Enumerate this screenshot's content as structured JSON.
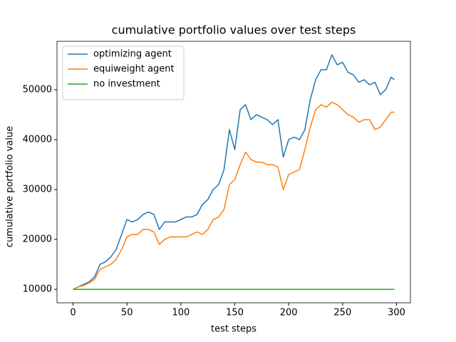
{
  "chart_data": {
    "type": "line",
    "title": "cumulative portfolio values over test steps",
    "xlabel": "test steps",
    "ylabel": "cumulative portfolio value",
    "x": [
      0,
      5,
      10,
      15,
      20,
      25,
      30,
      35,
      40,
      45,
      50,
      55,
      60,
      65,
      70,
      75,
      80,
      85,
      90,
      95,
      100,
      105,
      110,
      115,
      120,
      125,
      130,
      135,
      140,
      145,
      150,
      155,
      160,
      165,
      170,
      175,
      180,
      185,
      190,
      195,
      200,
      205,
      210,
      215,
      220,
      225,
      230,
      235,
      240,
      245,
      250,
      255,
      260,
      265,
      270,
      275,
      280,
      285,
      290,
      295,
      298
    ],
    "series": [
      {
        "name": "optimizing agent",
        "color": "#1f77b4",
        "values": [
          10000,
          10500,
          11000,
          11500,
          12500,
          15000,
          15500,
          16500,
          18000,
          21000,
          24000,
          23500,
          24000,
          25000,
          25500,
          25000,
          22000,
          23500,
          23500,
          23500,
          24000,
          24500,
          24500,
          25000,
          27000,
          28000,
          30000,
          31000,
          34000,
          42000,
          38000,
          46000,
          47000,
          44000,
          45000,
          44500,
          44000,
          43000,
          44000,
          36500,
          40000,
          40500,
          40000,
          42000,
          48000,
          52000,
          54000,
          54000,
          57000,
          55000,
          55500,
          53500,
          53000,
          51500,
          52000,
          51000,
          51500,
          49000,
          50000,
          52500,
          52000
        ]
      },
      {
        "name": "equiweight agent",
        "color": "#ff7f0e",
        "values": [
          10000,
          10500,
          10800,
          11300,
          12000,
          14000,
          14500,
          15000,
          16000,
          18000,
          20500,
          21000,
          21000,
          22000,
          22000,
          21500,
          19000,
          20000,
          20500,
          20500,
          20500,
          20500,
          21000,
          21500,
          21000,
          22000,
          24000,
          24500,
          26000,
          31000,
          32000,
          35000,
          37500,
          36000,
          35500,
          35500,
          35000,
          35000,
          34500,
          30000,
          33000,
          33500,
          34000,
          38000,
          42500,
          46000,
          47000,
          46500,
          47500,
          47000,
          46000,
          45000,
          44500,
          43500,
          44000,
          44000,
          42000,
          42500,
          44000,
          45500,
          45500
        ]
      },
      {
        "name": "no investment",
        "color": "#2ca02c",
        "values": [
          10000,
          10000,
          10000,
          10000,
          10000,
          10000,
          10000,
          10000,
          10000,
          10000,
          10000,
          10000,
          10000,
          10000,
          10000,
          10000,
          10000,
          10000,
          10000,
          10000,
          10000,
          10000,
          10000,
          10000,
          10000,
          10000,
          10000,
          10000,
          10000,
          10000,
          10000,
          10000,
          10000,
          10000,
          10000,
          10000,
          10000,
          10000,
          10000,
          10000,
          10000,
          10000,
          10000,
          10000,
          10000,
          10000,
          10000,
          10000,
          10000,
          10000,
          10000,
          10000,
          10000,
          10000,
          10000,
          10000,
          10000,
          10000,
          10000,
          10000,
          10000
        ]
      }
    ],
    "xlim": [
      -14.9,
      312.9
    ],
    "ylim": [
      7300,
      59700
    ],
    "xticks": [
      0,
      50,
      100,
      150,
      200,
      250,
      300
    ],
    "yticks": [
      10000,
      20000,
      30000,
      40000,
      50000
    ],
    "grid": false,
    "legend": "upper left"
  }
}
